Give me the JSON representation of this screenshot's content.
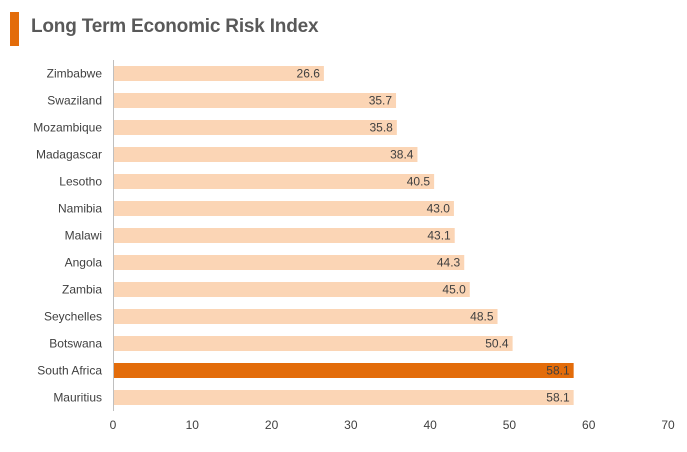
{
  "title": "Long Term Economic Risk Index",
  "colors": {
    "accent": "#e36c0a",
    "bar": "#fbd5b5",
    "highlight": "#e36c0a",
    "axis": "#bfbfbf",
    "text": "#404040"
  },
  "chart_data": {
    "type": "bar",
    "orientation": "horizontal",
    "title": "Long Term Economic Risk Index",
    "categories": [
      "Zimbabwe",
      "Swaziland",
      "Mozambique",
      "Madagascar",
      "Lesotho",
      "Namibia",
      "Malawi",
      "Angola",
      "Zambia",
      "Seychelles",
      "Botswana",
      "South Africa",
      "Mauritius"
    ],
    "values": [
      26.6,
      35.7,
      35.8,
      38.4,
      40.5,
      43.0,
      43.1,
      44.3,
      45.0,
      48.5,
      50.4,
      58.1,
      58.1
    ],
    "value_labels": [
      "26.6",
      "35.7",
      "35.8",
      "38.4",
      "40.5",
      "43.0",
      "43.1",
      "44.3",
      "45.0",
      "48.5",
      "50.4",
      "58.1",
      "58.1"
    ],
    "highlighted": [
      "South Africa"
    ],
    "xlim": [
      0,
      70
    ],
    "xticks": [
      "0",
      "10",
      "20",
      "30",
      "40",
      "50",
      "60",
      "70"
    ],
    "xlabel": "",
    "ylabel": "",
    "grid": false,
    "legend": false
  }
}
